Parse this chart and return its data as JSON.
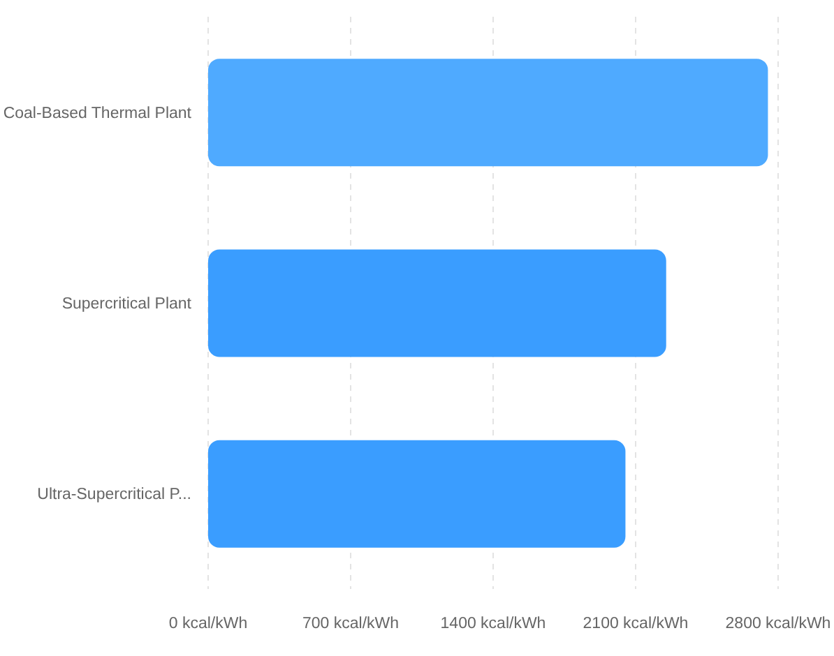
{
  "chart_data": {
    "type": "bar",
    "orientation": "horizontal",
    "categories": [
      "Coal-Based Thermal Plant",
      "Supercritical Plant",
      "Ultra-Supercritical P..."
    ],
    "values": [
      2750,
      2250,
      2050
    ],
    "colors": [
      "#4faaff",
      "#3a9dff",
      "#3a9dff"
    ],
    "xlim": [
      0,
      2800
    ],
    "xticks": [
      {
        "value": 0,
        "label": "0 kcal/kWh"
      },
      {
        "value": 700,
        "label": "700 kcal/kWh"
      },
      {
        "value": 1400,
        "label": "1400 kcal/kWh"
      },
      {
        "value": 2100,
        "label": "2100 kcal/kWh"
      },
      {
        "value": 2800,
        "label": "2800 kcal/kWh"
      }
    ],
    "grid": "x"
  }
}
